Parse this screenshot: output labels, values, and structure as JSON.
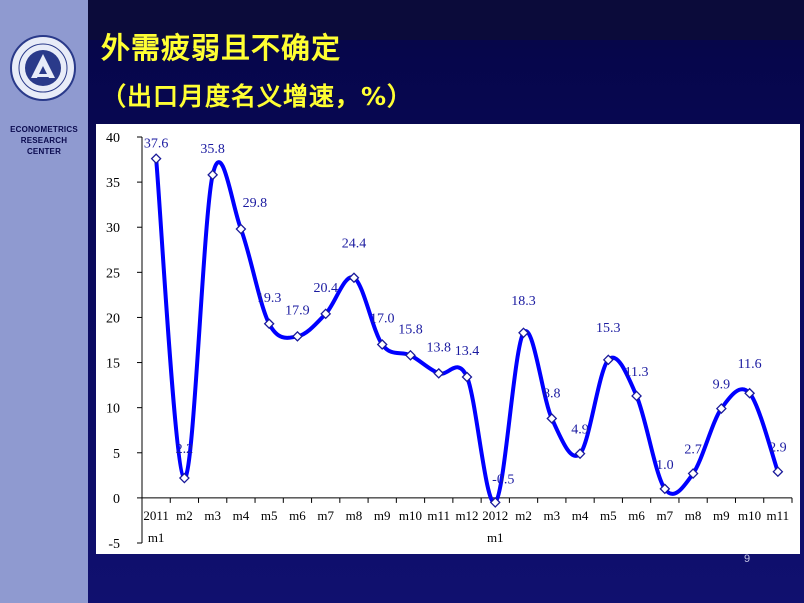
{
  "slide": {
    "title": "外需疲弱且不确定",
    "subtitle": "（出口月度名义增速，%）",
    "page_number": "9",
    "sidebar_center": [
      "ECONOMETRICS",
      "RESEARCH",
      "CENTER"
    ]
  },
  "colors": {
    "background": "#0a0a4e",
    "sidebar": "#8f9ad0",
    "title": "#ffff33",
    "line": "#0000ff",
    "label": "#1a1aa0"
  },
  "chart_data": {
    "type": "line",
    "title": "",
    "xlabel": "",
    "ylabel": "",
    "ylim": [
      -5,
      40
    ],
    "yticks": [
      -5,
      0,
      5,
      10,
      15,
      20,
      25,
      30,
      35,
      40
    ],
    "grid": false,
    "legend": "none",
    "smooth": true,
    "categories": [
      [
        "2011",
        "m1"
      ],
      [
        "m2"
      ],
      [
        "m3"
      ],
      [
        "m4"
      ],
      [
        "m5"
      ],
      [
        "m6"
      ],
      [
        "m7"
      ],
      [
        "m8"
      ],
      [
        "m9"
      ],
      [
        "m10"
      ],
      [
        "m11"
      ],
      [
        "m12"
      ],
      [
        "2012",
        "m1"
      ],
      [
        "m2"
      ],
      [
        "m3"
      ],
      [
        "m4"
      ],
      [
        "m5"
      ],
      [
        "m6"
      ],
      [
        "m7"
      ],
      [
        "m8"
      ],
      [
        "m9"
      ],
      [
        "m10"
      ],
      [
        "m11"
      ]
    ],
    "values": [
      37.6,
      2.2,
      35.8,
      29.8,
      19.3,
      17.9,
      20.4,
      24.4,
      17.0,
      15.8,
      13.8,
      13.4,
      -0.5,
      18.3,
      8.8,
      4.9,
      15.3,
      11.3,
      1.0,
      2.7,
      9.9,
      11.6,
      2.9
    ],
    "labels": [
      "37.6",
      "2.2",
      "35.8",
      "29.8",
      "19.3",
      "17.9",
      "20.4",
      "24.4",
      "17.0",
      "15.8",
      "13.8",
      "13.4",
      "-0.5",
      "18.3",
      "8.8",
      "4.9",
      "15.3",
      "11.3",
      "1.0",
      "2.7",
      "9.9",
      "11.6",
      "2.9"
    ]
  }
}
